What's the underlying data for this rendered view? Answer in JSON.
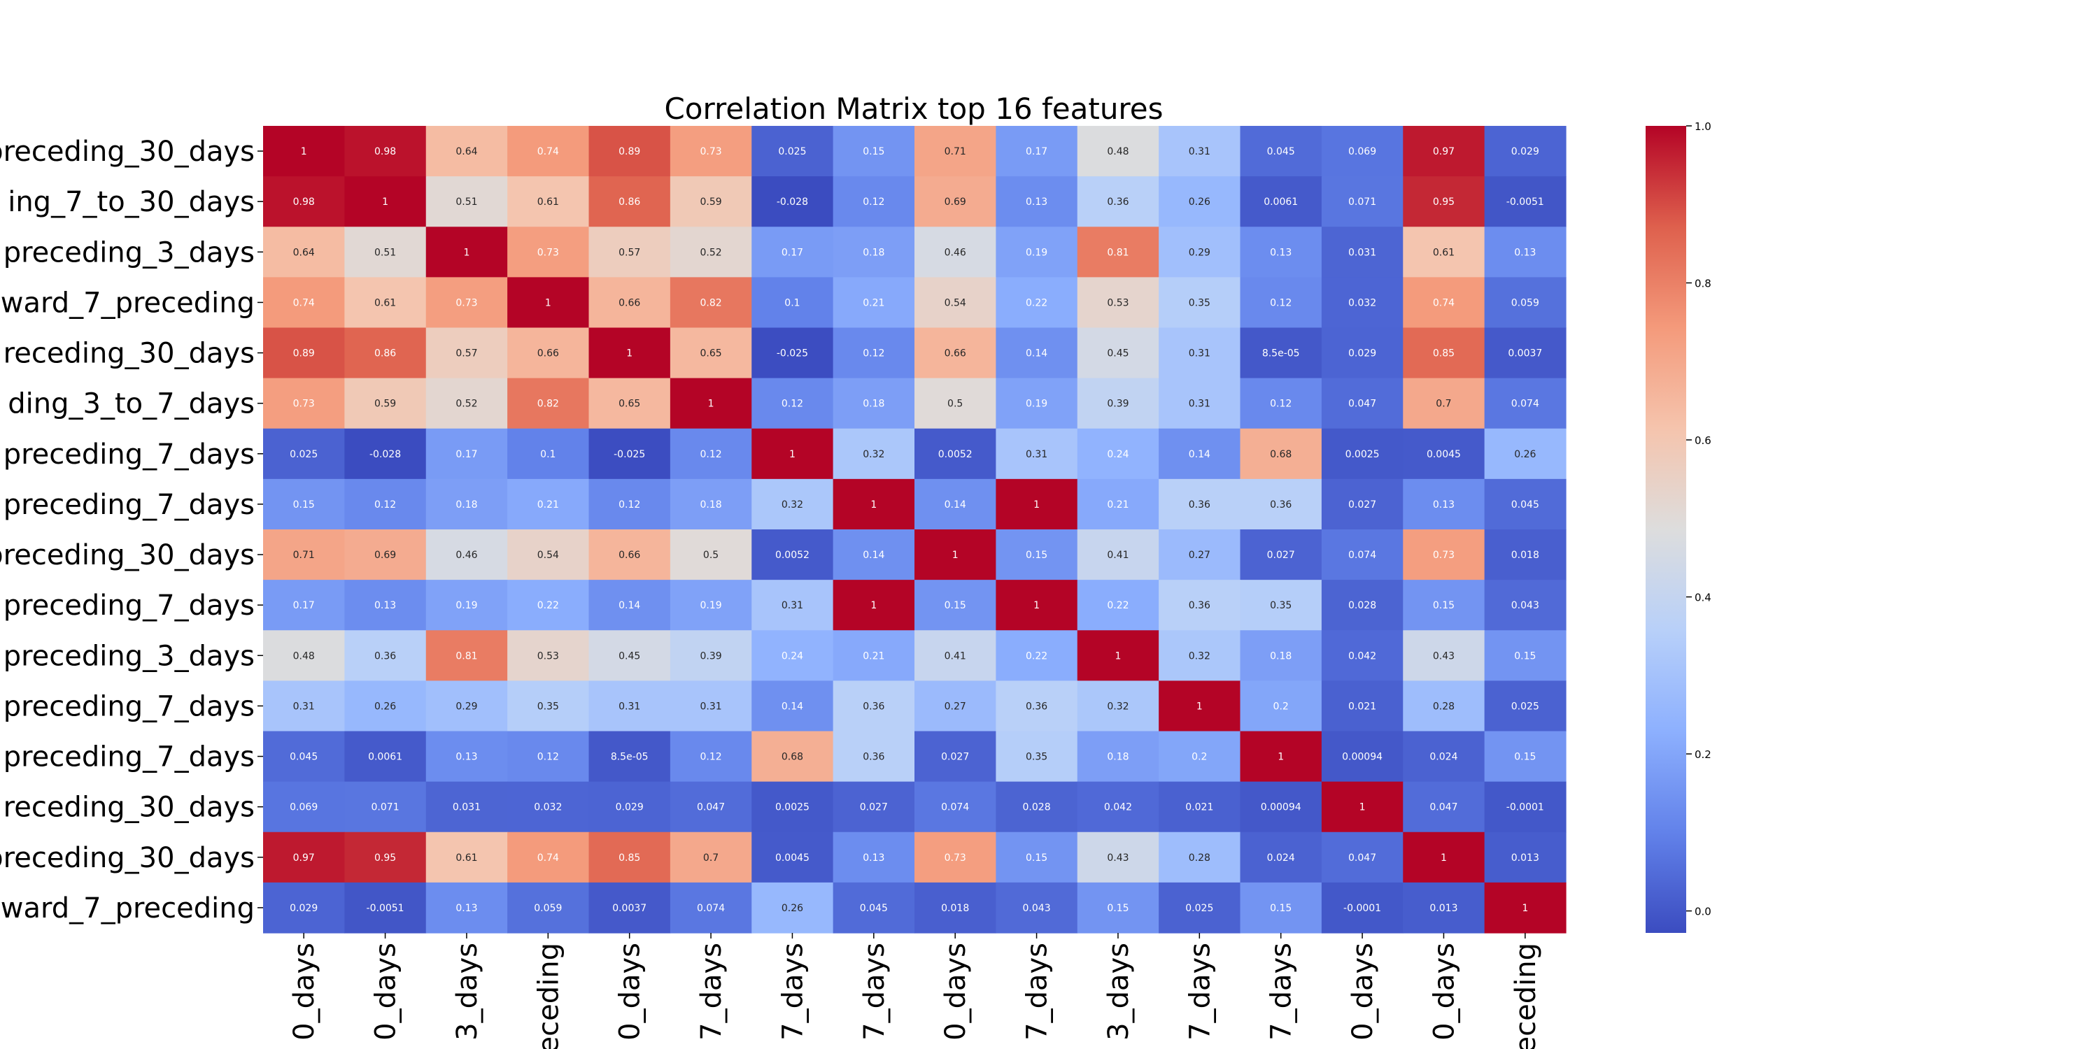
{
  "chart_data": {
    "type": "heatmap",
    "title": "Correlation Matrix top 16 features",
    "row_labels": [
      "preceding_30_days",
      "ing_7_to_30_days",
      "preceding_3_days",
      "ward_7_preceding",
      "receding_30_days",
      "ding_3_to_7_days",
      "preceding_7_days",
      "preceding_7_days",
      "preceding_30_days",
      "preceding_7_days",
      "preceding_3_days",
      "preceding_7_days",
      "preceding_7_days",
      "receding_30_days",
      "preceding_30_days",
      "ward_7_preceding"
    ],
    "col_labels": [
      "0_days",
      "0_days",
      "3_days",
      "eceding",
      "0_days",
      "7_days",
      "7_days",
      "7_days",
      "0_days",
      "7_days",
      "3_days",
      "7_days",
      "7_days",
      "0_days",
      "0_days",
      "eceding"
    ],
    "cells": [
      [
        "1",
        "0.98",
        "0.64",
        "0.74",
        "0.89",
        "0.73",
        "0.025",
        "0.15",
        "0.71",
        "0.17",
        "0.48",
        "0.31",
        "0.045",
        "0.069",
        "0.97",
        "0.029"
      ],
      [
        "0.98",
        "1",
        "0.51",
        "0.61",
        "0.86",
        "0.59",
        "-0.028",
        "0.12",
        "0.69",
        "0.13",
        "0.36",
        "0.26",
        "0.0061",
        "0.071",
        "0.95",
        "-0.0051"
      ],
      [
        "0.64",
        "0.51",
        "1",
        "0.73",
        "0.57",
        "0.52",
        "0.17",
        "0.18",
        "0.46",
        "0.19",
        "0.81",
        "0.29",
        "0.13",
        "0.031",
        "0.61",
        "0.13"
      ],
      [
        "0.74",
        "0.61",
        "0.73",
        "1",
        "0.66",
        "0.82",
        "0.1",
        "0.21",
        "0.54",
        "0.22",
        "0.53",
        "0.35",
        "0.12",
        "0.032",
        "0.74",
        "0.059"
      ],
      [
        "0.89",
        "0.86",
        "0.57",
        "0.66",
        "1",
        "0.65",
        "-0.025",
        "0.12",
        "0.66",
        "0.14",
        "0.45",
        "0.31",
        "8.5e-05",
        "0.029",
        "0.85",
        "0.0037"
      ],
      [
        "0.73",
        "0.59",
        "0.52",
        "0.82",
        "0.65",
        "1",
        "0.12",
        "0.18",
        "0.5",
        "0.19",
        "0.39",
        "0.31",
        "0.12",
        "0.047",
        "0.7",
        "0.074"
      ],
      [
        "0.025",
        "-0.028",
        "0.17",
        "0.1",
        "-0.025",
        "0.12",
        "1",
        "0.32",
        "0.0052",
        "0.31",
        "0.24",
        "0.14",
        "0.68",
        "0.0025",
        "0.0045",
        "0.26"
      ],
      [
        "0.15",
        "0.12",
        "0.18",
        "0.21",
        "0.12",
        "0.18",
        "0.32",
        "1",
        "0.14",
        "1",
        "0.21",
        "0.36",
        "0.36",
        "0.027",
        "0.13",
        "0.045"
      ],
      [
        "0.71",
        "0.69",
        "0.46",
        "0.54",
        "0.66",
        "0.5",
        "0.0052",
        "0.14",
        "1",
        "0.15",
        "0.41",
        "0.27",
        "0.027",
        "0.074",
        "0.73",
        "0.018"
      ],
      [
        "0.17",
        "0.13",
        "0.19",
        "0.22",
        "0.14",
        "0.19",
        "0.31",
        "1",
        "0.15",
        "1",
        "0.22",
        "0.36",
        "0.35",
        "0.028",
        "0.15",
        "0.043"
      ],
      [
        "0.48",
        "0.36",
        "0.81",
        "0.53",
        "0.45",
        "0.39",
        "0.24",
        "0.21",
        "0.41",
        "0.22",
        "1",
        "0.32",
        "0.18",
        "0.042",
        "0.43",
        "0.15"
      ],
      [
        "0.31",
        "0.26",
        "0.29",
        "0.35",
        "0.31",
        "0.31",
        "0.14",
        "0.36",
        "0.27",
        "0.36",
        "0.32",
        "1",
        "0.2",
        "0.021",
        "0.28",
        "0.025"
      ],
      [
        "0.045",
        "0.0061",
        "0.13",
        "0.12",
        "8.5e-05",
        "0.12",
        "0.68",
        "0.36",
        "0.027",
        "0.35",
        "0.18",
        "0.2",
        "1",
        "0.00094",
        "0.024",
        "0.15"
      ],
      [
        "0.069",
        "0.071",
        "0.031",
        "0.032",
        "0.029",
        "0.047",
        "0.0025",
        "0.027",
        "0.074",
        "0.028",
        "0.042",
        "0.021",
        "0.00094",
        "1",
        "0.047",
        "-0.0001"
      ],
      [
        "0.97",
        "0.95",
        "0.61",
        "0.74",
        "0.85",
        "0.7",
        "0.0045",
        "0.13",
        "0.73",
        "0.15",
        "0.43",
        "0.28",
        "0.024",
        "0.047",
        "1",
        "0.013"
      ],
      [
        "0.029",
        "-0.0051",
        "0.13",
        "0.059",
        "0.0037",
        "0.074",
        "0.26",
        "0.045",
        "0.018",
        "0.043",
        "0.15",
        "0.025",
        "0.15",
        "-0.0001",
        "0.013",
        "1"
      ]
    ],
    "colorbar": {
      "colormap": "coolwarm",
      "range": [
        -0.028,
        1.0
      ],
      "ticks": [
        "0.0",
        "0.2",
        "0.4",
        "0.6",
        "0.8",
        "1.0"
      ]
    }
  }
}
